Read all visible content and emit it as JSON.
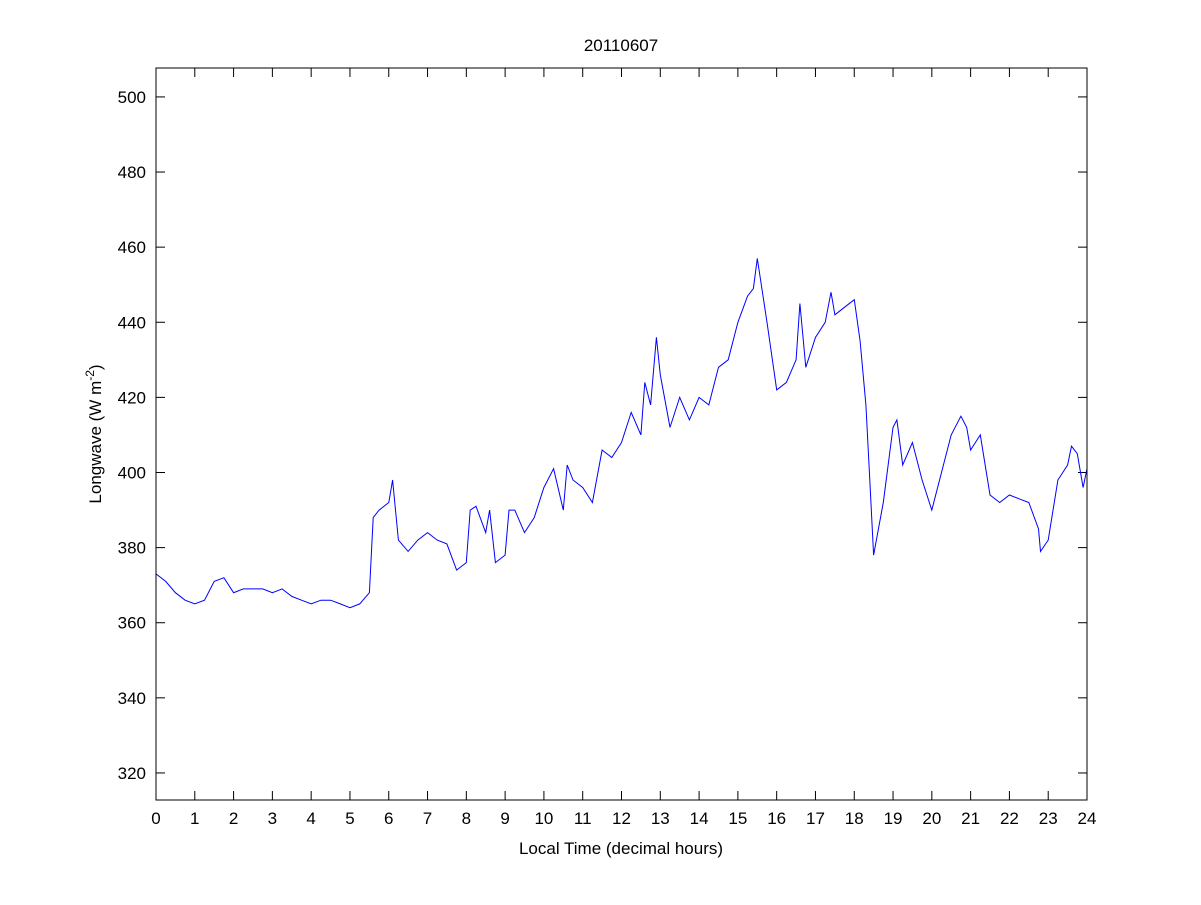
{
  "chart_data": {
    "type": "line",
    "title": "20110607",
    "xlabel": "Local Time (decimal hours)",
    "ylabel_main": "Longwave (W m",
    "ylabel_sup": "-2",
    "ylabel_close": ")",
    "xlim": [
      0,
      24
    ],
    "ylim": [
      312.8,
      507.7
    ],
    "xticks": [
      0,
      1,
      2,
      3,
      4,
      5,
      6,
      7,
      8,
      9,
      10,
      11,
      12,
      13,
      14,
      15,
      16,
      17,
      18,
      19,
      20,
      21,
      22,
      23,
      24
    ],
    "yticks": [
      320,
      340,
      360,
      380,
      400,
      420,
      440,
      460,
      480,
      500
    ],
    "grid": false,
    "line_color": "#0000ff",
    "series": [
      {
        "name": "Longwave",
        "x": [
          0,
          0.25,
          0.5,
          0.75,
          1,
          1.25,
          1.5,
          1.75,
          2,
          2.25,
          2.5,
          2.75,
          3,
          3.25,
          3.5,
          3.75,
          4,
          4.25,
          4.5,
          4.75,
          5,
          5.25,
          5.5,
          5.6,
          5.75,
          6,
          6.1,
          6.25,
          6.5,
          6.75,
          7,
          7.25,
          7.5,
          7.75,
          8,
          8.1,
          8.25,
          8.5,
          8.6,
          8.75,
          9,
          9.1,
          9.25,
          9.5,
          9.75,
          10,
          10.25,
          10.5,
          10.6,
          10.75,
          11,
          11.25,
          11.5,
          11.75,
          12,
          12.25,
          12.5,
          12.6,
          12.75,
          12.9,
          13,
          13.25,
          13.5,
          13.75,
          14,
          14.25,
          14.5,
          14.75,
          15,
          15.25,
          15.4,
          15.5,
          15.75,
          16,
          16.25,
          16.5,
          16.6,
          16.75,
          17,
          17.25,
          17.4,
          17.5,
          17.75,
          18,
          18.15,
          18.3,
          18.4,
          18.5,
          18.75,
          19,
          19.1,
          19.25,
          19.5,
          19.75,
          20,
          20.25,
          20.5,
          20.75,
          20.9,
          21,
          21.25,
          21.5,
          21.75,
          22,
          22.25,
          22.5,
          22.75,
          22.8,
          23,
          23.25,
          23.5,
          23.6,
          23.75,
          23.9,
          24
        ],
        "y": [
          373,
          371,
          368,
          366,
          365,
          366,
          371,
          372,
          368,
          369,
          369,
          369,
          368,
          369,
          367,
          366,
          365,
          366,
          366,
          365,
          364,
          365,
          368,
          388,
          390,
          392,
          398,
          382,
          379,
          382,
          384,
          382,
          381,
          374,
          376,
          390,
          391,
          384,
          390,
          376,
          378,
          390,
          390,
          384,
          388,
          396,
          401,
          390,
          402,
          398,
          396,
          392,
          406,
          404,
          408,
          416,
          410,
          424,
          418,
          436,
          426,
          412,
          420,
          414,
          420,
          418,
          428,
          430,
          440,
          447,
          449,
          457,
          440,
          422,
          424,
          430,
          445,
          428,
          436,
          440,
          448,
          442,
          444,
          446,
          435,
          418,
          398,
          378,
          392,
          412,
          414,
          402,
          408,
          398,
          390,
          400,
          410,
          415,
          412,
          406,
          410,
          394,
          392,
          394,
          393,
          392,
          385,
          379,
          382,
          398,
          402,
          407,
          405,
          396,
          401
        ]
      }
    ]
  }
}
